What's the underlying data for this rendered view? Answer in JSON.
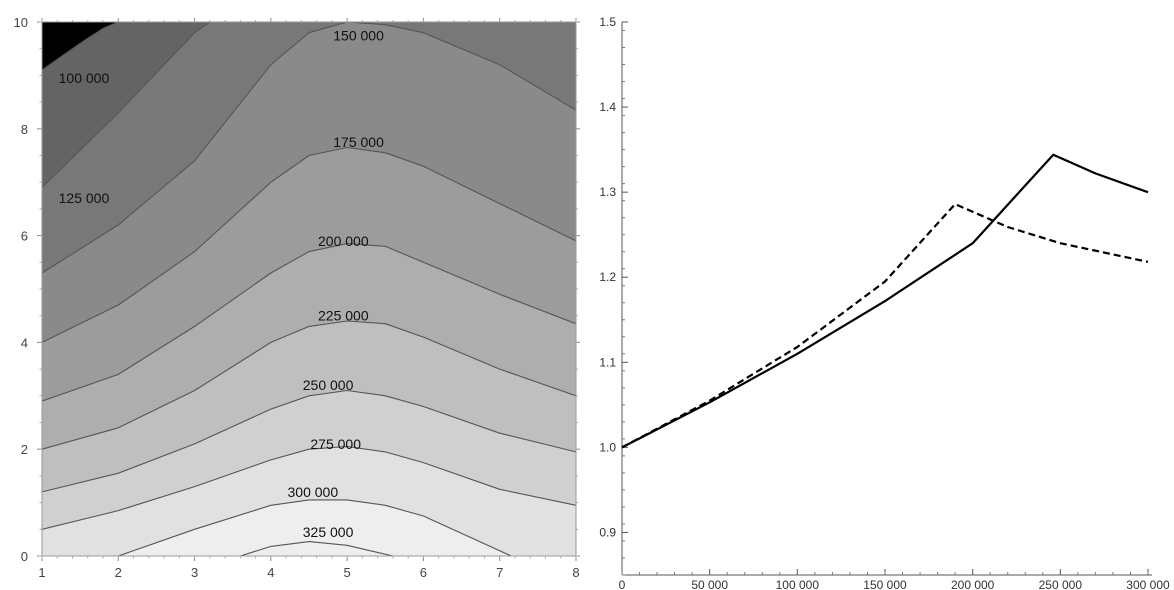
{
  "chart_data": [
    {
      "type": "contour",
      "xlim": [
        1,
        8
      ],
      "ylim": [
        0,
        10
      ],
      "x_ticks": [
        1,
        2,
        3,
        4,
        5,
        6,
        7,
        8
      ],
      "y_ticks": [
        0,
        2,
        4,
        6,
        8,
        10
      ],
      "contour_levels": [
        "100 000",
        "125 000",
        "150 000",
        "175 000",
        "200 000",
        "225 000",
        "250 000",
        "275 000",
        "300 000",
        "325 000"
      ],
      "fill_colors": [
        "#000000",
        "#4c4c4c",
        "#646464",
        "#787878",
        "#8a8a8a",
        "#9c9c9c",
        "#aeaeae",
        "#bfbfbf",
        "#d0d0d0",
        "#e1e1e1",
        "#eeeeee"
      ],
      "line_color": "#555555",
      "contours": [
        {
          "label": "100 000",
          "x": [
            1.0,
            1.3,
            1.55,
            1.8,
            2.0
          ],
          "y": [
            9.1,
            9.4,
            9.65,
            9.88,
            10.0
          ]
        },
        {
          "label": "125 000",
          "x": [
            1.0,
            1.5,
            2.0,
            2.5,
            3.0,
            3.2
          ],
          "y": [
            6.9,
            7.6,
            8.3,
            9.05,
            9.8,
            10.0
          ]
        },
        {
          "label": "150 000",
          "x": [
            1.0,
            2.0,
            3.0,
            3.5,
            4.0,
            4.5,
            5.0,
            5.5,
            6.0,
            7.0,
            8.0
          ],
          "y": [
            5.3,
            6.2,
            7.4,
            8.3,
            9.2,
            9.8,
            10.0,
            9.95,
            9.8,
            9.2,
            8.35
          ]
        },
        {
          "label": "175 000",
          "x": [
            1.0,
            2.0,
            3.0,
            4.0,
            4.5,
            5.0,
            5.5,
            6.0,
            7.0,
            8.0
          ],
          "y": [
            4.0,
            4.7,
            5.7,
            7.0,
            7.5,
            7.65,
            7.55,
            7.3,
            6.6,
            5.9
          ]
        },
        {
          "label": "200 000",
          "x": [
            1.0,
            2.0,
            3.0,
            4.0,
            4.5,
            5.0,
            5.5,
            6.0,
            7.0,
            8.0
          ],
          "y": [
            2.9,
            3.4,
            4.3,
            5.3,
            5.7,
            5.85,
            5.8,
            5.5,
            4.9,
            4.35
          ]
        },
        {
          "label": "225 000",
          "x": [
            1.0,
            2.0,
            3.0,
            4.0,
            4.5,
            5.0,
            5.5,
            6.0,
            7.0,
            8.0
          ],
          "y": [
            2.0,
            2.4,
            3.1,
            4.0,
            4.3,
            4.4,
            4.35,
            4.1,
            3.5,
            3.0
          ]
        },
        {
          "label": "250 000",
          "x": [
            1.0,
            2.0,
            3.0,
            4.0,
            4.5,
            5.0,
            5.5,
            6.0,
            7.0,
            8.0
          ],
          "y": [
            1.2,
            1.55,
            2.1,
            2.75,
            3.0,
            3.1,
            3.0,
            2.8,
            2.3,
            1.95
          ]
        },
        {
          "label": "275 000",
          "x": [
            1.0,
            2.0,
            3.0,
            4.0,
            4.5,
            5.0,
            5.5,
            6.0,
            7.0,
            8.0
          ],
          "y": [
            0.5,
            0.85,
            1.3,
            1.8,
            2.0,
            2.05,
            1.95,
            1.75,
            1.25,
            0.95
          ]
        },
        {
          "label": "300 000",
          "x": [
            2.0,
            3.0,
            4.0,
            4.5,
            5.0,
            5.5,
            6.0,
            7.0,
            7.15
          ],
          "y": [
            0.0,
            0.5,
            0.95,
            1.05,
            1.05,
            0.95,
            0.75,
            0.1,
            0.0
          ]
        },
        {
          "label": "325 000",
          "x": [
            3.6,
            4.0,
            4.5,
            5.0,
            5.3,
            5.6
          ],
          "y": [
            0.0,
            0.18,
            0.27,
            0.2,
            0.1,
            0.0
          ]
        }
      ],
      "contour_labels": [
        {
          "text": "100 000",
          "x": 1.55,
          "y": 8.95
        },
        {
          "text": "125 000",
          "x": 1.55,
          "y": 6.7
        },
        {
          "text": "150 000",
          "x": 5.15,
          "y": 9.75
        },
        {
          "text": "175 000",
          "x": 5.15,
          "y": 7.75
        },
        {
          "text": "200 000",
          "x": 4.95,
          "y": 5.9
        },
        {
          "text": "225 000",
          "x": 4.95,
          "y": 4.5
        },
        {
          "text": "250 000",
          "x": 4.75,
          "y": 3.2
        },
        {
          "text": "275 000",
          "x": 4.85,
          "y": 2.1
        },
        {
          "text": "300 000",
          "x": 4.55,
          "y": 1.2
        },
        {
          "text": "325 000",
          "x": 4.75,
          "y": 0.45
        }
      ]
    },
    {
      "type": "line",
      "xlim": [
        0,
        300000
      ],
      "ylim": [
        0.85,
        1.5
      ],
      "x_ticks": [
        0,
        50000,
        100000,
        150000,
        200000,
        250000,
        300000
      ],
      "x_tick_labels": [
        "0",
        "50 000",
        "100 000",
        "150 000",
        "200 000",
        "250 000",
        "300 000"
      ],
      "y_ticks": [
        0.9,
        1.0,
        1.1,
        1.2,
        1.3,
        1.4,
        1.5
      ],
      "y_tick_labels": [
        "0.9",
        "1.0",
        "1.1",
        "1.2",
        "1.3",
        "1.4",
        "1.5"
      ],
      "axis_origin": [
        0,
        0.85
      ],
      "series": [
        {
          "style": "solid",
          "x": [
            0,
            50000,
            100000,
            150000,
            200000,
            246000,
            270000,
            300000
          ],
          "y": [
            1.0,
            1.053,
            1.11,
            1.172,
            1.24,
            1.344,
            1.322,
            1.3
          ]
        },
        {
          "style": "dashed",
          "x": [
            0,
            50000,
            100000,
            150000,
            190000,
            220000,
            250000,
            300000
          ],
          "y": [
            1.0,
            1.055,
            1.118,
            1.195,
            1.286,
            1.259,
            1.24,
            1.218
          ]
        }
      ]
    }
  ]
}
